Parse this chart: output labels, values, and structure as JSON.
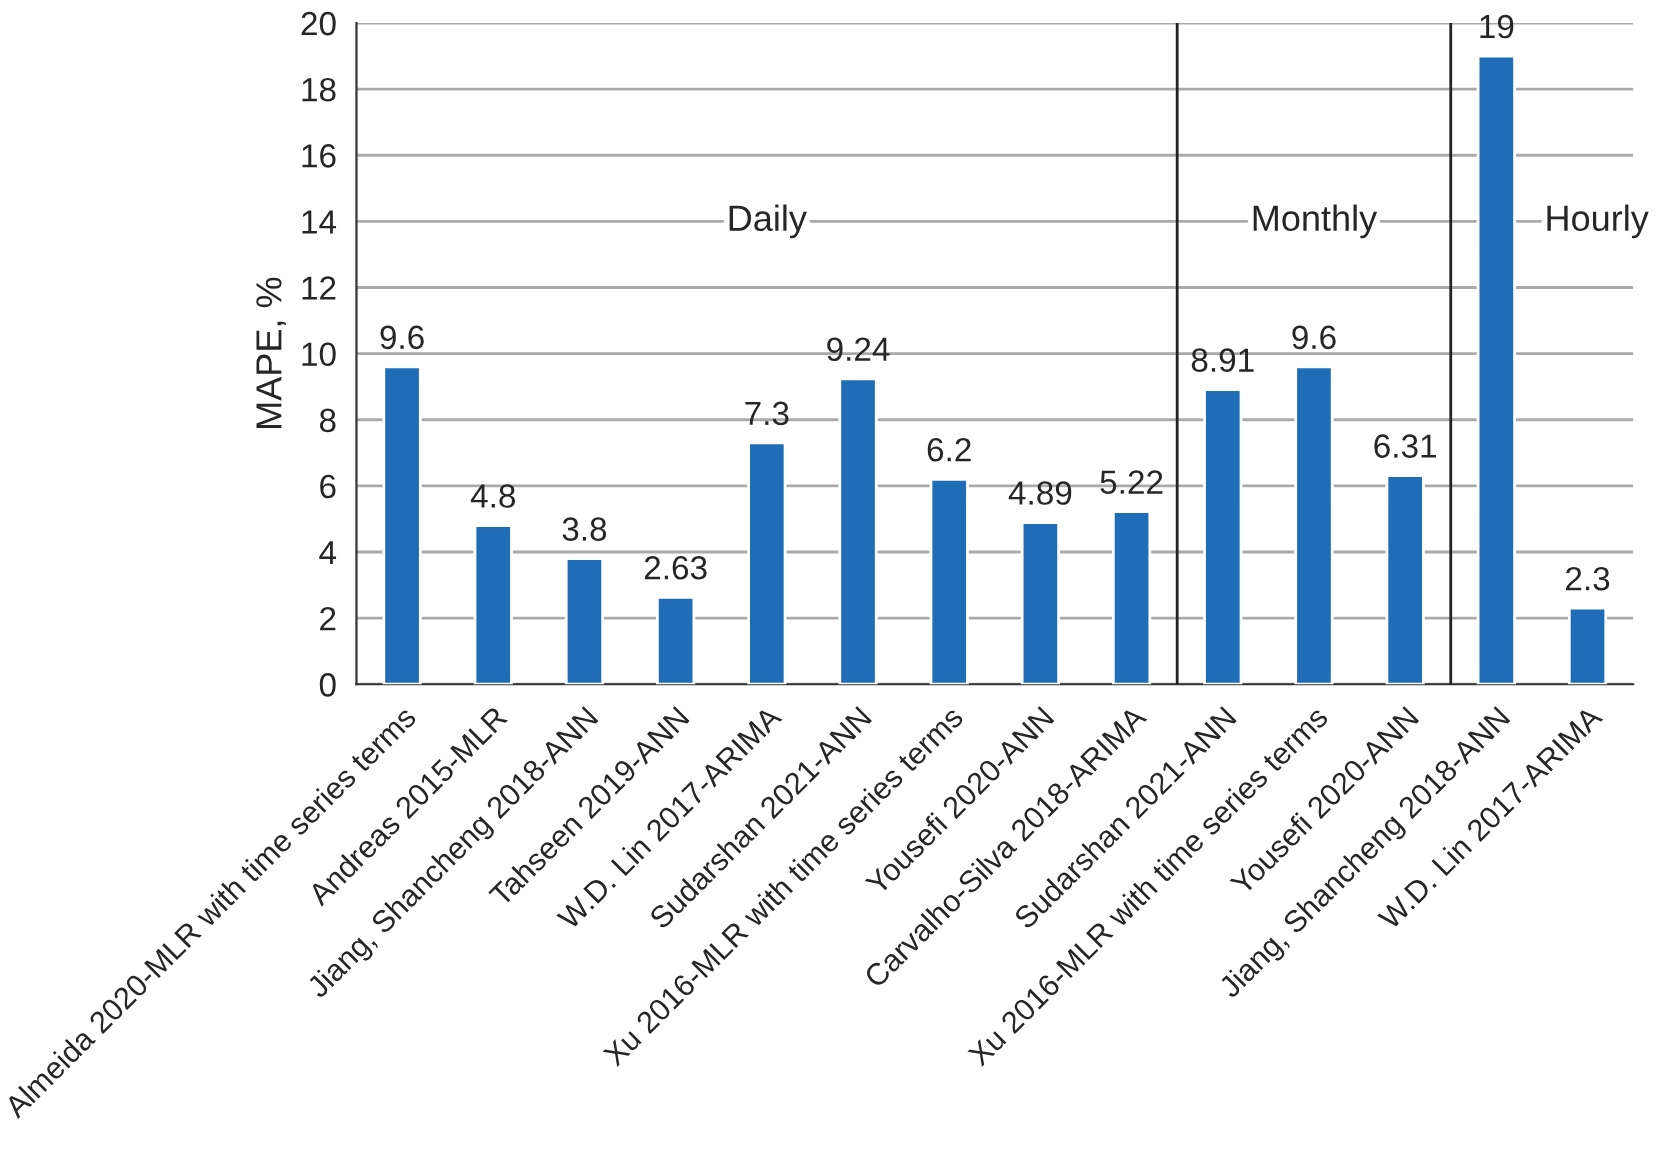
{
  "chart_data": {
    "type": "bar",
    "categories": [
      "Almeida 2020-MLR with time series terms",
      "Andreas 2015-MLR",
      "Jiang, Shancheng 2018-ANN",
      "Tahseen 2019-ANN",
      "W.D. Lin 2017-ARIMA",
      "Sudarshan 2021-ANN",
      "Xu 2016-MLR with time series terms",
      "Yousefi 2020-ANN",
      "Carvalho-Silva 2018-ARIMA",
      "Sudarshan 2021-ANN",
      "Xu 2016-MLR with time series terms",
      "Yousefi 2020-ANN",
      "Jiang, Shancheng 2018-ANN",
      "W.D. Lin 2017-ARIMA"
    ],
    "values": [
      9.6,
      4.8,
      3.8,
      2.63,
      7.3,
      9.24,
      6.2,
      4.89,
      5.22,
      8.91,
      9.6,
      6.31,
      19,
      2.3
    ],
    "color": "#1f6db6",
    "ylabel": "MAPE, %",
    "ylim": [
      0,
      20
    ],
    "yticks": [
      0,
      2,
      4,
      6,
      8,
      10,
      12,
      14,
      16,
      18,
      20
    ],
    "grid": "y",
    "data_labels": true,
    "annotations": [
      "Daily",
      "Monthly",
      "Hourly"
    ]
  }
}
